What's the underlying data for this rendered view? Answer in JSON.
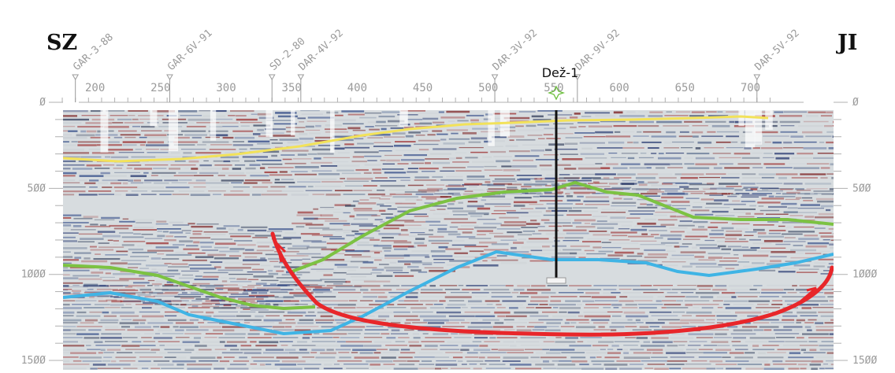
{
  "direction_left": "SZ",
  "direction_right": "JI",
  "well": {
    "name": "Dež-1",
    "cdp": 529
  },
  "crossing_lines": [
    {
      "name": "GAR-3-88",
      "cdp": 195
    },
    {
      "name": "GAR-6V-91",
      "cdp": 267
    },
    {
      "name": "SD-2-80",
      "cdp": 345
    },
    {
      "name": "DAR-4V-92",
      "cdp": 367
    },
    {
      "name": "DAR-3V-92",
      "cdp": 515
    },
    {
      "name": "DAR-9V-92",
      "cdp": 578
    },
    {
      "name": "DAR-5V-92",
      "cdp": 715
    }
  ],
  "cdp_axis": {
    "ticks": [
      "200",
      "250",
      "300",
      "350",
      "400",
      "450",
      "500",
      "550",
      "600",
      "650",
      "700"
    ]
  },
  "twt_axis": {
    "ticks": [
      "0",
      "500",
      "1000",
      "1500"
    ]
  },
  "colors": {
    "yellow_horizon": "#f2e25a",
    "green_horizon": "#7cc242",
    "blue_horizon": "#3fb4e5",
    "fault": "#e8262a",
    "seismic_red": "#8c1c1c",
    "seismic_blue": "#1d2f6a"
  }
}
